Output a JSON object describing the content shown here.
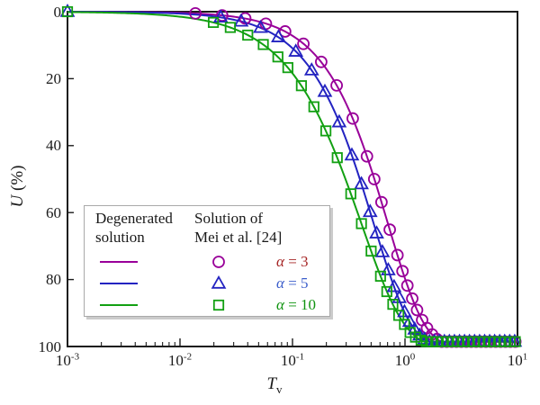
{
  "figure": {
    "y_axis": {
      "label_var": "U",
      "label_unit": " (%)",
      "min": 0,
      "max": 100,
      "ticks": [
        0,
        20,
        40,
        60,
        80,
        100
      ],
      "inverted": true
    },
    "x_axis": {
      "label_var": "T",
      "label_sub": "v",
      "scale": "log",
      "tick_base": "10",
      "tick_exponents": [
        -3,
        -2,
        -1,
        0,
        1
      ]
    }
  },
  "legend": {
    "col1_title": "Degenerated\nsolution",
    "col2_title": "Solution of\nMei et al. [24]",
    "rows": [
      {
        "alpha": "α",
        "rest": " = 3",
        "text_color": "#a62626"
      },
      {
        "alpha": "α",
        "rest": " = 5",
        "text_color": "#3c5ecb"
      },
      {
        "alpha": "α",
        "rest": " = 10",
        "text_color": "#0f930f"
      }
    ]
  },
  "chart_data": {
    "type": "line",
    "title": "",
    "xlabel": "Tv",
    "ylabel": "U (%)",
    "x_range": [
      0.001,
      10
    ],
    "y_range": [
      0,
      100
    ],
    "y_inverted": true,
    "grid": false,
    "legend_position": "inside lower-left",
    "series": [
      {
        "name": "alpha = 3",
        "line_label": "Degenerated solution",
        "marker_label": "Solution of Mei et al. [24]",
        "color": "#990099",
        "marker": "circle",
        "model": {
          "type": "weibull",
          "formula": "U = 100*(1-exp(-(Tv/tau)^m))",
          "tau": 0.704,
          "m": 1.33
        },
        "points": [
          [
            0.0137,
            0.5
          ],
          [
            0.0237,
            1.1
          ],
          [
            0.038,
            2.0
          ],
          [
            0.058,
            3.6
          ],
          [
            0.086,
            5.9
          ],
          [
            0.125,
            9.6
          ],
          [
            0.18,
            15.0
          ],
          [
            0.247,
            22.0
          ],
          [
            0.343,
            31.9
          ],
          [
            0.459,
            43.2
          ],
          [
            0.533,
            50.0
          ],
          [
            0.618,
            56.9
          ],
          [
            0.732,
            65.1
          ],
          [
            0.857,
            72.7
          ],
          [
            0.95,
            77.5
          ],
          [
            1.05,
            81.8
          ],
          [
            1.16,
            85.7
          ],
          [
            1.28,
            89.1
          ],
          [
            1.42,
            92.1
          ],
          [
            1.57,
            94.5
          ],
          [
            1.74,
            96.4
          ],
          [
            1.92,
            97.8
          ],
          [
            2.12,
            98.7
          ],
          [
            2.35,
            99.3
          ],
          [
            2.6,
            99.7
          ],
          [
            2.87,
            99.9
          ],
          [
            3.17,
            99.9
          ],
          [
            3.51,
            100
          ],
          [
            3.88,
            100
          ],
          [
            4.29,
            100
          ],
          [
            4.74,
            100
          ],
          [
            5.24,
            100
          ],
          [
            5.79,
            100
          ],
          [
            6.4,
            100
          ],
          [
            7.08,
            100
          ],
          [
            7.82,
            100
          ],
          [
            8.65,
            100
          ],
          [
            9.56,
            100
          ]
        ]
      },
      {
        "name": "alpha = 5",
        "line_label": "Degenerated solution",
        "marker_label": "Solution of Mei et al. [24]",
        "color": "#2323c1",
        "marker": "triangle",
        "model": {
          "type": "weibull",
          "formula": "U = 100*(1-exp(-(Tv/tau)^m))",
          "tau": 0.526,
          "m": 1.3
        },
        "points": [
          [
            0.001,
            0.0
          ],
          [
            0.023,
            1.7
          ],
          [
            0.035,
            2.9
          ],
          [
            0.052,
            4.8
          ],
          [
            0.075,
            7.6
          ],
          [
            0.107,
            11.9
          ],
          [
            0.148,
            17.5
          ],
          [
            0.194,
            23.9
          ],
          [
            0.26,
            33.0
          ],
          [
            0.337,
            42.9
          ],
          [
            0.41,
            51.5
          ],
          [
            0.49,
            59.8
          ],
          [
            0.56,
            66.2
          ],
          [
            0.63,
            71.8
          ],
          [
            0.71,
            77.2
          ],
          [
            0.8,
            82.2
          ],
          [
            0.89,
            85.5
          ],
          [
            0.99,
            89.7
          ],
          [
            1.1,
            92.6
          ],
          [
            1.22,
            94.9
          ],
          [
            1.35,
            96.7
          ],
          [
            1.49,
            97.9
          ],
          [
            1.65,
            98.8
          ],
          [
            1.83,
            99.4
          ],
          [
            2.02,
            99.7
          ],
          [
            2.24,
            99.9
          ],
          [
            2.48,
            100
          ],
          [
            2.75,
            100
          ],
          [
            3.05,
            100
          ],
          [
            3.38,
            100
          ],
          [
            3.74,
            100
          ],
          [
            4.15,
            100
          ],
          [
            4.6,
            100
          ],
          [
            5.1,
            100
          ],
          [
            5.65,
            100
          ],
          [
            6.26,
            100
          ],
          [
            6.94,
            100
          ],
          [
            7.69,
            100
          ],
          [
            8.52,
            100
          ],
          [
            9.44,
            100
          ]
        ]
      },
      {
        "name": "alpha = 10",
        "line_label": "Degenerated solution",
        "marker_label": "Solution of Mei et al. [24]",
        "color": "#12a012",
        "marker": "square",
        "model": {
          "type": "weibull",
          "formula": "U = 100*(1-exp(-(Tv/tau)^m))",
          "tau": 0.409,
          "m": 1.13
        },
        "points": [
          [
            0.001,
            0.0
          ],
          [
            0.0198,
            3.2
          ],
          [
            0.028,
            4.7
          ],
          [
            0.04,
            7.0
          ],
          [
            0.055,
            9.8
          ],
          [
            0.0742,
            13.5
          ],
          [
            0.091,
            16.7
          ],
          [
            0.12,
            22.1
          ],
          [
            0.155,
            28.4
          ],
          [
            0.198,
            35.6
          ],
          [
            0.25,
            43.6
          ],
          [
            0.33,
            54.4
          ],
          [
            0.41,
            63.3
          ],
          [
            0.5,
            71.5
          ],
          [
            0.606,
            79.0
          ],
          [
            0.69,
            83.6
          ],
          [
            0.78,
            87.4
          ],
          [
            0.88,
            90.7
          ],
          [
            0.99,
            93.4
          ],
          [
            1.11,
            95.8
          ],
          [
            1.24,
            97.2
          ],
          [
            1.39,
            98.1
          ],
          [
            1.55,
            98.9
          ],
          [
            1.73,
            99.4
          ],
          [
            1.93,
            99.7
          ],
          [
            2.15,
            99.9
          ],
          [
            2.39,
            100
          ],
          [
            2.66,
            100
          ],
          [
            2.96,
            100
          ],
          [
            3.29,
            100
          ],
          [
            3.66,
            100
          ],
          [
            4.07,
            100
          ],
          [
            4.53,
            100
          ],
          [
            5.04,
            100
          ],
          [
            5.61,
            100
          ],
          [
            6.24,
            100
          ],
          [
            6.94,
            100
          ],
          [
            7.72,
            100
          ],
          [
            8.59,
            100
          ],
          [
            9.55,
            100
          ]
        ]
      }
    ]
  }
}
